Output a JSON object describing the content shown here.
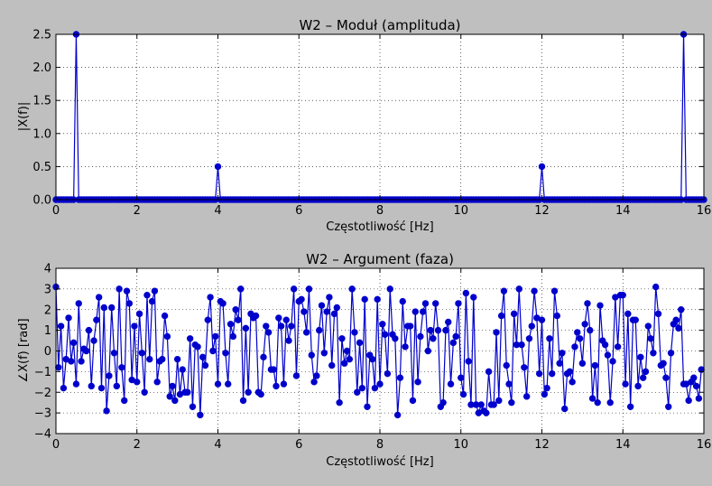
{
  "chart_data": [
    {
      "type": "line",
      "title": "W2 – Moduł (amplituda)",
      "xlabel": "Częstotliwość [Hz]",
      "ylabel": "|X(f)|",
      "xlim": [
        0,
        16
      ],
      "ylim": [
        0,
        2.5
      ],
      "xticks": [
        "0",
        "2",
        "4",
        "6",
        "8",
        "10",
        "12",
        "14",
        "16"
      ],
      "yticks": [
        "0.0",
        "0.5",
        "1.0",
        "1.5",
        "2.0",
        "2.5"
      ],
      "grid": true,
      "line_color": "#0000cc",
      "series": [
        {
          "x": [
            0,
            0.5,
            4,
            12,
            15.5
          ],
          "y": [
            0,
            2.5,
            0.5,
            0.5,
            2.5
          ]
        }
      ]
    },
    {
      "type": "line",
      "title": "W2 – Argument (faza)",
      "xlabel": "Częstotliwość [Hz]",
      "ylabel": "∠X(f) [rad]",
      "xlim": [
        0,
        16
      ],
      "ylim": [
        -4,
        4
      ],
      "xticks": [
        "0",
        "2",
        "4",
        "6",
        "8",
        "10",
        "12",
        "14",
        "16"
      ],
      "yticks": [
        "−4",
        "−3",
        "−2",
        "−1",
        "0",
        "1",
        "2",
        "3",
        "4"
      ],
      "grid": true,
      "line_color": "#0000cc",
      "series": [
        {
          "x0": 0,
          "dx": 0.0625,
          "y": [
            3.1,
            -0.8,
            1.2,
            -1.8,
            -0.4,
            1.6,
            -0.5,
            0.4,
            -1.6,
            2.3,
            -0.5,
            0.1,
            0.0,
            1.0,
            -1.7,
            0.5,
            1.5,
            2.6,
            -1.8,
            2.1,
            -2.9,
            -1.2,
            2.1,
            -0.1,
            -1.7,
            3.0,
            -0.8,
            -2.4,
            2.9,
            2.3,
            -1.4,
            1.2,
            -1.5,
            1.8,
            -0.1,
            -2.0,
            2.7,
            -0.4,
            2.4,
            2.9,
            -1.5,
            -0.5,
            -0.4,
            1.7,
            0.7,
            -2.2,
            -1.7,
            -2.4,
            -0.4,
            -2.1,
            -0.9,
            -2.0,
            -2.0,
            0.6,
            -2.7,
            0.3,
            0.2,
            -3.1,
            -0.3,
            -0.7,
            1.5,
            2.6,
            0.0,
            0.7,
            -1.6,
            2.4,
            2.3,
            -0.1,
            -1.6,
            1.3,
            0.7,
            2.0,
            1.5,
            3.0,
            -2.4,
            1.1,
            -2.0,
            1.8,
            1.6,
            1.7,
            -2.0,
            -2.1,
            -0.3,
            1.2,
            0.9,
            -0.9,
            -0.9,
            -1.7,
            1.6,
            1.2,
            -1.6,
            1.5,
            0.5,
            1.2,
            3.0,
            -1.2,
            2.4,
            2.5,
            1.9,
            0.9,
            3.0,
            -0.2,
            -1.5,
            -1.2,
            1.0,
            2.2,
            -0.1,
            1.9,
            2.6,
            -0.7,
            1.8,
            2.1,
            -2.5,
            0.6,
            -0.6,
            0.0,
            -0.4,
            3.0,
            0.9,
            -2.0,
            0.4,
            -1.8,
            2.5,
            -2.7,
            -0.2,
            -0.4,
            -1.8,
            2.5,
            -1.6,
            1.3,
            0.8,
            -1.1,
            3.0,
            0.8,
            0.6,
            -3.1,
            -1.3,
            2.4,
            0.2,
            1.2,
            1.2,
            -2.4,
            1.9,
            -1.5,
            0.7,
            1.9,
            2.3,
            0.0,
            1.0,
            0.6,
            2.3,
            1.0,
            -2.7,
            -2.5,
            1.0,
            1.4,
            -1.6,
            0.4,
            0.7,
            2.3,
            -1.3,
            -2.1,
            2.8,
            -0.5,
            -2.6,
            2.6,
            -2.6,
            -3.0,
            -2.6,
            -2.9,
            -3.0,
            -1.0,
            -2.6,
            -2.6,
            0.9,
            -2.4,
            1.7,
            2.9,
            -0.7,
            -1.6,
            -2.5,
            1.8,
            0.3,
            3.0,
            0.3,
            -0.8,
            -2.2,
            0.6,
            1.2,
            2.9,
            1.6,
            -1.1,
            1.5,
            -2.1,
            -1.8,
            0.6,
            -1.1,
            2.9,
            1.7,
            -0.6,
            -0.1,
            -2.8,
            -1.1,
            -1.0,
            -1.5,
            0.2,
            0.9,
            0.6,
            -0.6,
            1.3,
            2.3,
            1.0,
            -2.3,
            -0.7,
            -2.5,
            2.2,
            0.5,
            0.3,
            -0.2,
            -2.5,
            -0.5,
            2.6,
            0.2,
            2.7,
            2.7,
            -1.6,
            1.8,
            -2.7,
            1.5,
            1.5,
            -1.7,
            -0.3,
            -1.3,
            -1.0,
            1.2,
            0.6,
            -0.1,
            3.1,
            1.8,
            -0.7,
            -0.6,
            -1.3,
            -2.7,
            -0.1,
            1.3,
            1.5,
            1.1,
            2.0,
            -1.6,
            -1.6,
            -2.4,
            -1.5,
            -1.3,
            -1.7,
            -2.3,
            -0.9
          ]
        }
      ]
    }
  ]
}
